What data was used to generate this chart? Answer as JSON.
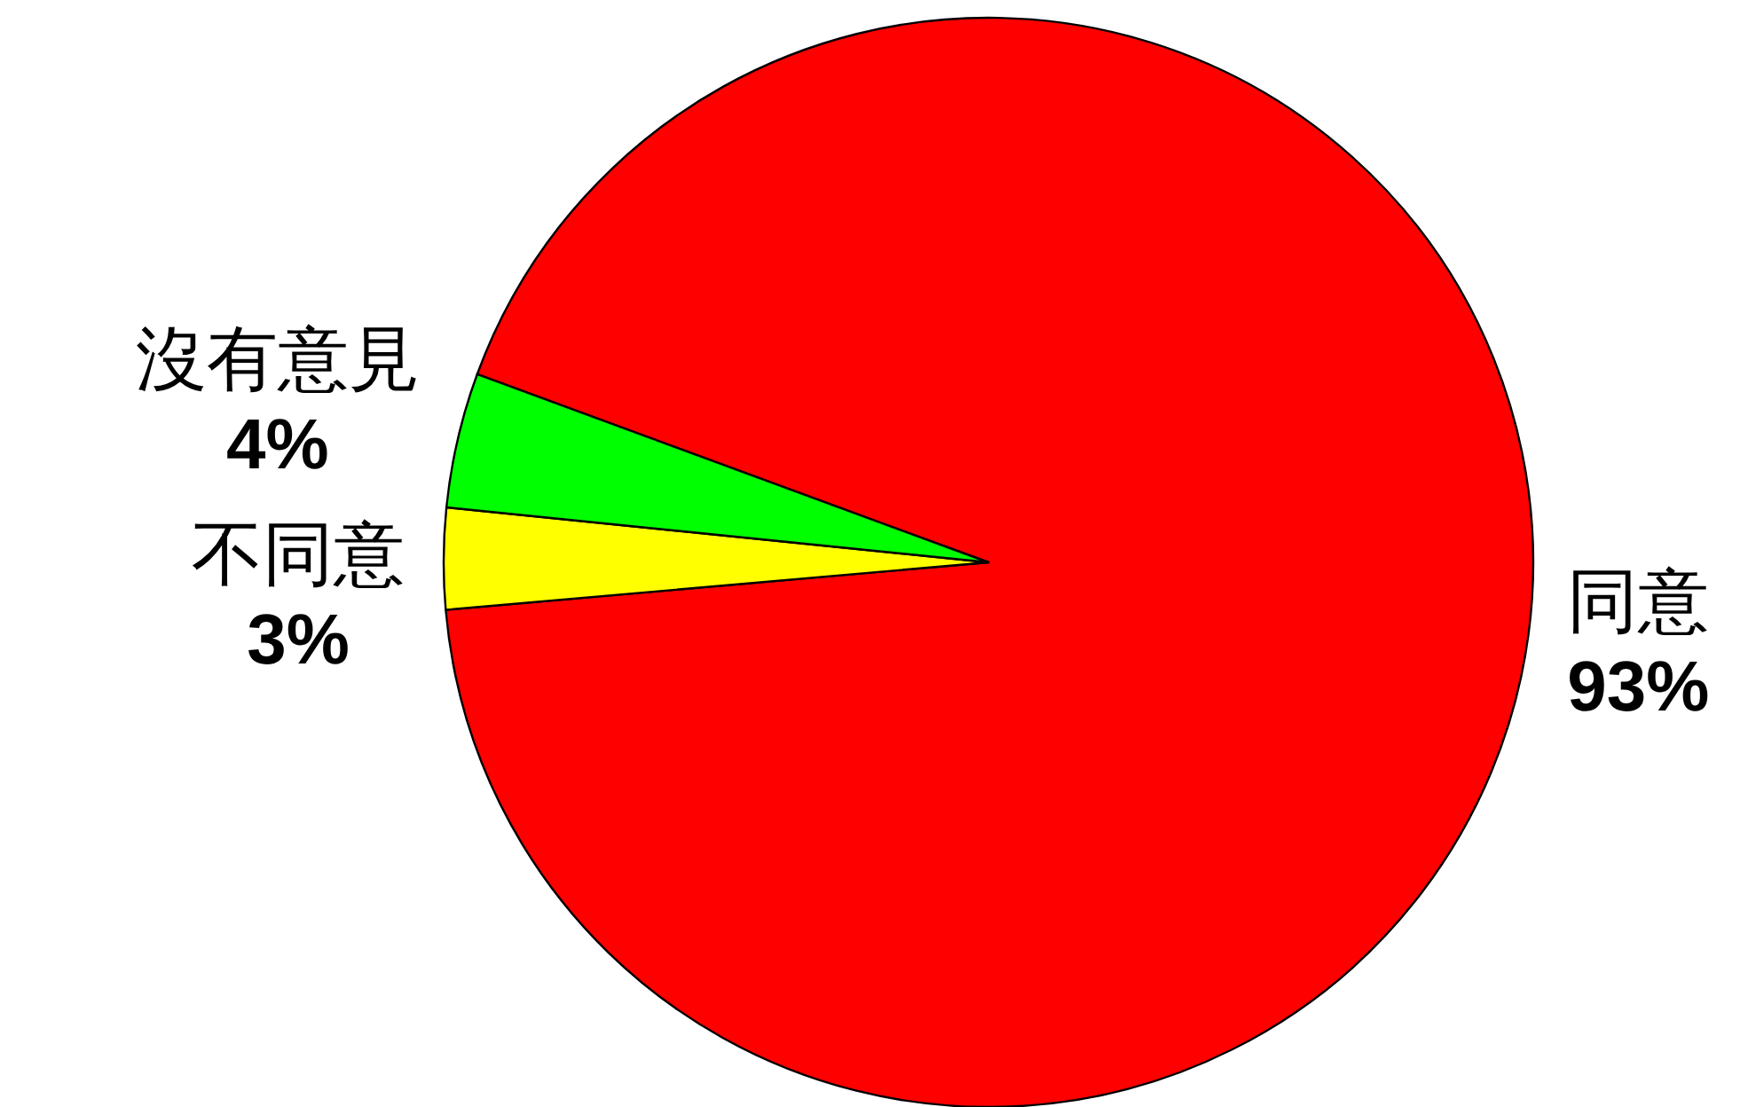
{
  "chart_data": {
    "type": "pie",
    "categories": [
      "同意",
      "不同意",
      "沒有意見"
    ],
    "values": [
      93,
      3,
      4
    ],
    "colors": [
      "#ff0000",
      "#ffff00",
      "#00ff00"
    ],
    "value_labels": [
      "93%",
      "3%",
      "4%"
    ]
  }
}
